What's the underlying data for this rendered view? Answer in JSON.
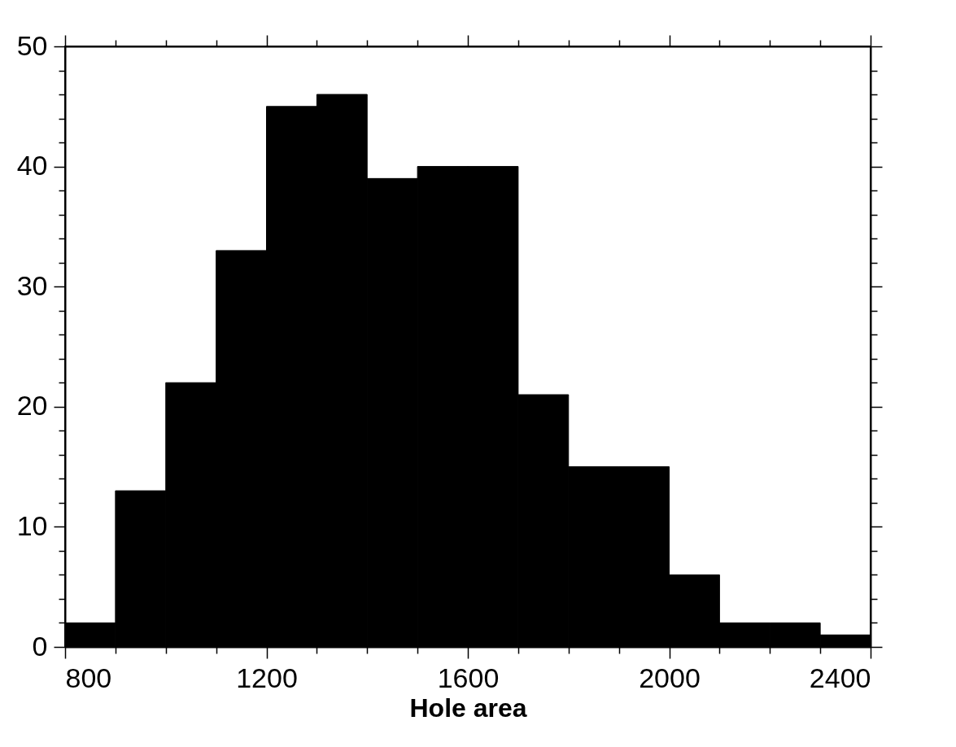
{
  "chart_data": {
    "type": "histogram",
    "xlabel": "Hole  area",
    "bins": [
      800,
      900,
      1000,
      1100,
      1200,
      1300,
      1400,
      1500,
      1600,
      1700,
      1800,
      1900,
      2000,
      2100,
      2200,
      2300,
      2400
    ],
    "values": [
      2,
      13,
      22,
      33,
      45,
      46,
      39,
      40,
      40,
      21,
      15,
      15,
      6,
      2,
      2,
      1
    ],
    "color": "#000000",
    "xlim": [
      800,
      2400
    ],
    "xticks": [
      800,
      {
        "value": 900,
        "label": null
      },
      {
        "value": 1000,
        "label": null
      },
      {
        "value": 1100,
        "label": null
      },
      1200,
      {
        "value": 1300,
        "label": null
      },
      {
        "value": 1400,
        "label": null
      },
      {
        "value": 1500,
        "label": null
      },
      1600,
      {
        "value": 1700,
        "label": null
      },
      {
        "value": 1800,
        "label": null
      },
      {
        "value": 1900,
        "label": null
      },
      2000,
      {
        "value": 2100,
        "label": null
      },
      {
        "value": 2200,
        "label": null
      },
      {
        "value": 2300,
        "label": null
      },
      2400
    ],
    "ylim": [
      0,
      50
    ],
    "yticks": [
      0,
      {
        "value": 2,
        "label": null
      },
      {
        "value": 4,
        "label": null
      },
      {
        "value": 6,
        "label": null
      },
      {
        "value": 8,
        "label": null
      },
      10,
      {
        "value": 12,
        "label": null
      },
      {
        "value": 14,
        "label": null
      },
      {
        "value": 16,
        "label": null
      },
      {
        "value": 18,
        "label": null
      },
      20,
      {
        "value": 22,
        "label": null
      },
      {
        "value": 24,
        "label": null
      },
      {
        "value": 26,
        "label": null
      },
      {
        "value": 28,
        "label": null
      },
      30,
      {
        "value": 32,
        "label": null
      },
      {
        "value": 34,
        "label": null
      },
      {
        "value": 36,
        "label": null
      },
      {
        "value": 38,
        "label": null
      },
      40,
      {
        "value": 42,
        "label": null
      },
      {
        "value": 44,
        "label": null
      },
      {
        "value": 46,
        "label": null
      },
      {
        "value": 48,
        "label": null
      },
      50
    ],
    "grid": false
  }
}
